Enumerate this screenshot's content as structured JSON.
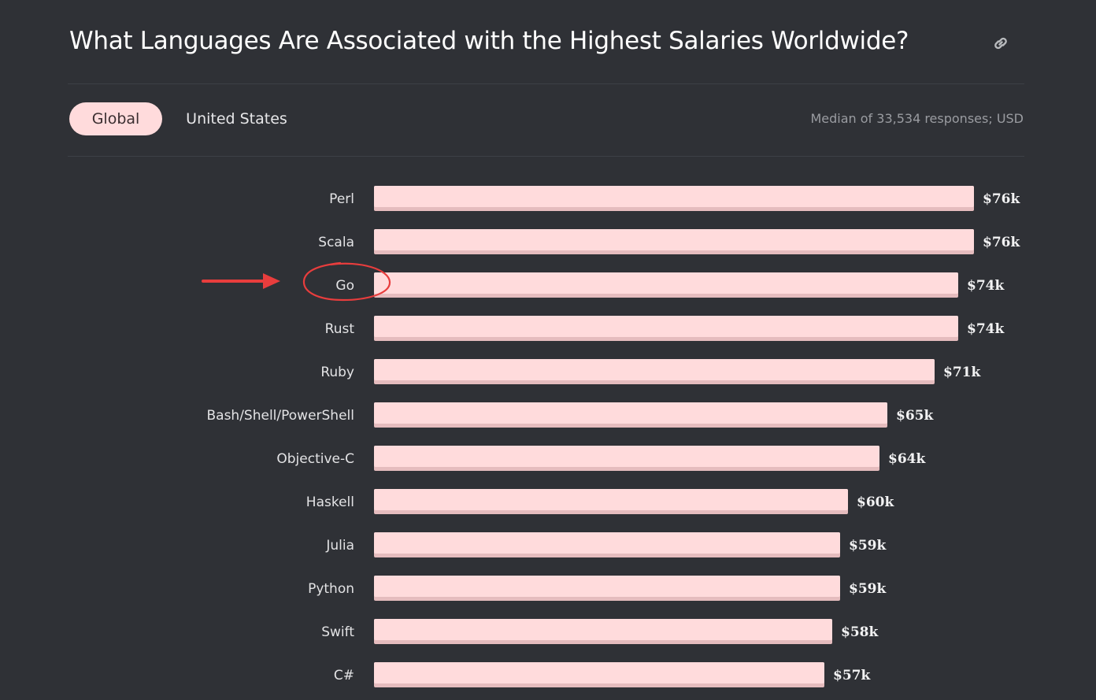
{
  "header": {
    "title": "What Languages Are Associated with the Highest Salaries Worldwide?",
    "link_icon": "link-icon"
  },
  "tabs": [
    {
      "label": "Global",
      "active": true
    },
    {
      "label": "United States",
      "active": false
    }
  ],
  "note": "Median of 33,534 responses; USD",
  "colors": {
    "background": "#2f3136",
    "bar": "#ffdbdc",
    "bar_shadow": "#e5bcbe",
    "annotation": "#e83d3d"
  },
  "annotation": {
    "highlighted_category": "Go",
    "icons": [
      "arrow-right-icon",
      "circle-highlight-icon"
    ]
  },
  "chart_data": {
    "type": "bar",
    "orientation": "horizontal",
    "categories": [
      "Perl",
      "Scala",
      "Go",
      "Rust",
      "Ruby",
      "Bash/Shell/PowerShell",
      "Objective-C",
      "Haskell",
      "Julia",
      "Python",
      "Swift",
      "C#"
    ],
    "values": [
      76,
      76,
      74,
      74,
      71,
      65,
      64,
      60,
      59,
      59,
      58,
      57
    ],
    "value_labels": [
      "$76k",
      "$76k",
      "$74k",
      "$74k",
      "$71k",
      "$65k",
      "$64k",
      "$60k",
      "$59k",
      "$59k",
      "$58k",
      "$57k"
    ],
    "unit": "USD thousands",
    "title": "What Languages Are Associated with the Highest Salaries Worldwide?",
    "xlabel": "",
    "ylabel": "",
    "grid": false,
    "legend": "none"
  }
}
